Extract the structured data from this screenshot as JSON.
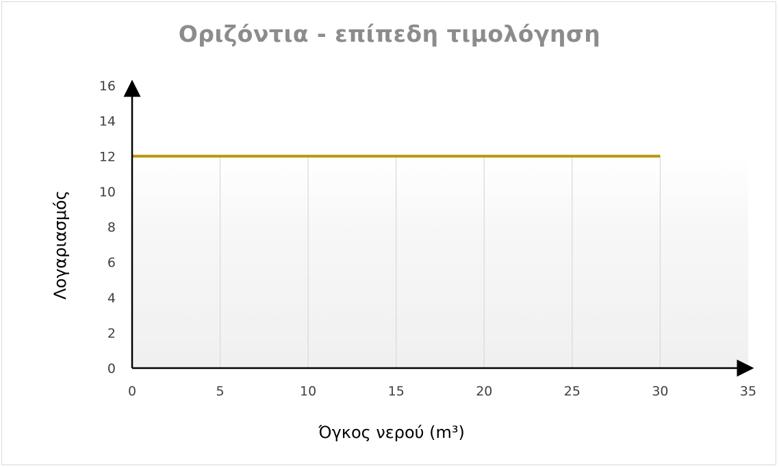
{
  "chart_data": {
    "type": "line",
    "title": "Οριζόντια - επίπεδη τιμολόγηση",
    "xlabel": "Όγκος νερού (m³)",
    "ylabel": "Λογαριασμός",
    "xlim": [
      0,
      35
    ],
    "ylim": [
      0,
      16
    ],
    "x_ticks": [
      0,
      5,
      10,
      15,
      20,
      25,
      30,
      35
    ],
    "y_ticks": [
      0,
      2,
      4,
      6,
      8,
      10,
      12,
      14,
      16
    ],
    "x_tick_labels": [
      "0",
      "5",
      "10",
      "15",
      "20",
      "25",
      "30",
      "35"
    ],
    "y_tick_labels": [
      "0",
      "2",
      "4",
      "6",
      "8",
      "10",
      "12",
      "14",
      "16"
    ],
    "vertical_gridlines": [
      5,
      10,
      15,
      20,
      25,
      30
    ],
    "grid": "vertical",
    "legend": "none",
    "series": [
      {
        "x": [
          0,
          30
        ],
        "y": [
          12,
          12
        ],
        "color": "#b8960c"
      }
    ],
    "colors": {
      "line": "#b8960c",
      "axis": "#000000",
      "grid": "#d9d9d9",
      "title": "#8c8c8c",
      "tick_label": "#404040"
    }
  }
}
